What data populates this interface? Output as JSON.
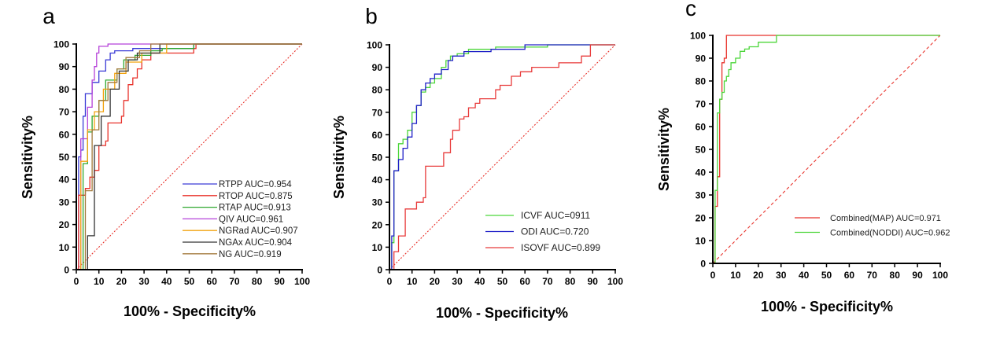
{
  "figure": {
    "description_labels": [
      "a",
      "b",
      "c"
    ]
  },
  "chart_data": [
    {
      "type": "line",
      "panel_label": "a",
      "xlabel": "100% - Specificity%",
      "ylabel": "Sensitivity%",
      "xlim": [
        0,
        100
      ],
      "ylim": [
        0,
        100
      ],
      "xticks": [
        "0",
        "10",
        "20",
        "30",
        "40",
        "50",
        "60",
        "70",
        "80",
        "90",
        "100"
      ],
      "yticks": [
        "0",
        "10",
        "20",
        "30",
        "40",
        "50",
        "60",
        "70",
        "80",
        "90",
        "100"
      ],
      "grid": false,
      "legend_position": "bottom-right",
      "reference_line": {
        "x": [
          0,
          100
        ],
        "y": [
          0,
          100
        ],
        "color": "#e8312a",
        "style": "dotted"
      },
      "series": [
        {
          "name": "RTPP",
          "legend_text": "RTPP   AUC=0.954",
          "color": "#3a3ad6",
          "x": [
            0,
            1,
            1,
            2,
            2,
            3,
            3,
            4,
            4,
            7,
            7,
            10,
            10,
            13,
            13,
            15,
            15,
            17,
            17,
            25,
            25,
            52,
            52,
            100
          ],
          "y": [
            0,
            0,
            50,
            50,
            53,
            53,
            68,
            68,
            78,
            78,
            83,
            83,
            88,
            88,
            93,
            93,
            96,
            96,
            97,
            97,
            98,
            98,
            100,
            100
          ]
        },
        {
          "name": "RTOP",
          "legend_text": "RTOP   AUC=0.875",
          "color": "#e8312a",
          "x": [
            0,
            1,
            1,
            4,
            4,
            6,
            6,
            8,
            8,
            10,
            10,
            13,
            13,
            14,
            14,
            20,
            20,
            21,
            21,
            23,
            23,
            25,
            25,
            27,
            27,
            29,
            29,
            33,
            33,
            52,
            52,
            53,
            53,
            100
          ],
          "y": [
            0,
            0,
            33,
            33,
            36,
            36,
            41,
            41,
            44,
            44,
            55,
            55,
            57,
            57,
            65,
            65,
            68,
            68,
            75,
            75,
            82,
            82,
            85,
            85,
            89,
            89,
            93,
            93,
            96,
            96,
            98,
            98,
            100,
            100
          ]
        },
        {
          "name": "RTAP",
          "legend_text": "RTAP    AUC=0.913",
          "color": "#2fa82f",
          "x": [
            0,
            3,
            3,
            5,
            5,
            7,
            7,
            10,
            10,
            13,
            13,
            18,
            18,
            21,
            21,
            26,
            26,
            33,
            33,
            38,
            38,
            52,
            52,
            100
          ],
          "y": [
            0,
            0,
            47,
            47,
            61,
            61,
            68,
            68,
            75,
            75,
            84,
            84,
            89,
            89,
            93,
            93,
            95,
            95,
            97,
            97,
            98,
            98,
            100,
            100
          ]
        },
        {
          "name": "QIV",
          "legend_text": "QIV      AUC=0.961",
          "color": "#b542d9",
          "x": [
            0,
            2,
            2,
            5,
            5,
            7,
            7,
            8,
            8,
            9,
            9,
            10,
            10,
            14,
            14,
            100
          ],
          "y": [
            0,
            0,
            58,
            58,
            72,
            72,
            84,
            84,
            90,
            90,
            96,
            96,
            99,
            99,
            100,
            100
          ]
        },
        {
          "name": "NGRad",
          "legend_text": "NGRad AUC=0.907",
          "color": "#f2a30f",
          "x": [
            0,
            2,
            2,
            5,
            5,
            8,
            8,
            12,
            12,
            17,
            17,
            22,
            22,
            29,
            29,
            40,
            40,
            100
          ],
          "y": [
            0,
            0,
            48,
            48,
            62,
            62,
            70,
            70,
            80,
            80,
            87,
            87,
            92,
            92,
            96,
            96,
            100,
            100
          ]
        },
        {
          "name": "NGAx",
          "legend_text": "NGAx    AUC=0.904",
          "color": "#333333",
          "x": [
            0,
            5,
            5,
            8,
            8,
            11,
            11,
            15,
            15,
            19,
            19,
            23,
            23,
            27,
            27,
            37,
            37,
            100
          ],
          "y": [
            0,
            0,
            15,
            15,
            55,
            55,
            68,
            68,
            80,
            80,
            88,
            88,
            93,
            93,
            96,
            96,
            100,
            100
          ]
        },
        {
          "name": "NG",
          "legend_text": "NG         AUC=0.919",
          "color": "#a37a3c",
          "x": [
            0,
            4,
            4,
            7,
            7,
            10,
            10,
            14,
            14,
            18,
            18,
            22,
            22,
            28,
            28,
            33,
            33,
            100
          ],
          "y": [
            0,
            0,
            35,
            35,
            62,
            62,
            75,
            75,
            83,
            83,
            89,
            89,
            94,
            94,
            97,
            97,
            100,
            100
          ]
        }
      ]
    },
    {
      "type": "line",
      "panel_label": "b",
      "xlabel": "100% - Specificity%",
      "ylabel": "Sensitivity%",
      "xlim": [
        0,
        100
      ],
      "ylim": [
        0,
        100
      ],
      "xticks": [
        "0",
        "10",
        "20",
        "30",
        "40",
        "50",
        "60",
        "70",
        "80",
        "90",
        "100"
      ],
      "yticks": [
        "0",
        "10",
        "20",
        "30",
        "40",
        "50",
        "60",
        "70",
        "80",
        "90",
        "100"
      ],
      "grid": false,
      "legend_position": "bottom-right",
      "reference_line": {
        "x": [
          0,
          100
        ],
        "y": [
          0,
          100
        ],
        "color": "#e8312a",
        "style": "dotted"
      },
      "series": [
        {
          "name": "ICVF",
          "legend_text": "ICVF   AUC=0911",
          "color": "#4cd63a",
          "x": [
            0,
            1,
            1,
            2,
            2,
            4,
            4,
            6,
            6,
            8,
            8,
            10,
            10,
            12,
            12,
            14,
            14,
            16,
            16,
            18,
            18,
            20,
            20,
            23,
            23,
            25,
            25,
            27,
            27,
            30,
            30,
            35,
            35,
            47,
            47,
            70,
            70,
            100
          ],
          "y": [
            0,
            0,
            12,
            12,
            44,
            44,
            56,
            56,
            58,
            58,
            62,
            62,
            70,
            70,
            73,
            73,
            79,
            79,
            81,
            81,
            83,
            83,
            85,
            85,
            90,
            90,
            93,
            93,
            95,
            95,
            96,
            96,
            98,
            98,
            99,
            99,
            100,
            100
          ]
        },
        {
          "name": "ODI",
          "legend_text": "ODI  AUC=0.720",
          "color": "#2020c8",
          "x": [
            0,
            1,
            1,
            2,
            2,
            4,
            4,
            6,
            6,
            8,
            8,
            10,
            10,
            12,
            12,
            14,
            14,
            16,
            16,
            18,
            18,
            20,
            20,
            23,
            23,
            26,
            26,
            28,
            28,
            33,
            33,
            45,
            45,
            60,
            60,
            100
          ],
          "y": [
            0,
            0,
            15,
            15,
            44,
            44,
            49,
            49,
            54,
            54,
            59,
            59,
            65,
            65,
            73,
            73,
            80,
            80,
            83,
            83,
            85,
            85,
            87,
            87,
            89,
            89,
            93,
            93,
            95,
            95,
            97,
            97,
            98,
            98,
            100,
            100
          ]
        },
        {
          "name": "ISOVF",
          "legend_text": "ISOVF  AUC=0.899",
          "color": "#e83a3a",
          "x": [
            0,
            2,
            2,
            4,
            4,
            7,
            7,
            12,
            12,
            15,
            15,
            16,
            16,
            24,
            24,
            27,
            27,
            28,
            28,
            31,
            31,
            33,
            33,
            35,
            35,
            38,
            38,
            40,
            40,
            47,
            47,
            49,
            49,
            54,
            54,
            58,
            58,
            63,
            63,
            75,
            75,
            85,
            85,
            89,
            89,
            100
          ],
          "y": [
            0,
            0,
            8,
            8,
            15,
            15,
            27,
            27,
            30,
            30,
            32,
            32,
            46,
            46,
            52,
            52,
            58,
            58,
            62,
            62,
            67,
            67,
            68,
            68,
            72,
            72,
            74,
            74,
            76,
            76,
            80,
            80,
            82,
            82,
            86,
            86,
            88,
            88,
            90,
            90,
            92,
            92,
            95,
            95,
            100,
            100
          ]
        }
      ]
    },
    {
      "type": "line",
      "panel_label": "c",
      "xlabel": "100% - Specificity%",
      "ylabel": "Sensitivity%",
      "xlim": [
        0,
        100
      ],
      "ylim": [
        0,
        100
      ],
      "xticks": [
        "0",
        "10",
        "20",
        "30",
        "40",
        "50",
        "60",
        "70",
        "80",
        "90",
        "100"
      ],
      "yticks": [
        "0",
        "10",
        "20",
        "30",
        "40",
        "50",
        "60",
        "70",
        "80",
        "90",
        "100"
      ],
      "grid": false,
      "legend_position": "bottom-right",
      "reference_line": {
        "x": [
          0,
          100
        ],
        "y": [
          0,
          100
        ],
        "color": "#e8312a",
        "style": "dashed"
      },
      "series": [
        {
          "name": "Combined(MAP)",
          "legend_text": "Combined(MAP)  AUC=0.971",
          "color": "#e8312a",
          "x": [
            0,
            1,
            1,
            2,
            2,
            3,
            3,
            4,
            4,
            5,
            5,
            6,
            6,
            100
          ],
          "y": [
            0,
            0,
            25,
            25,
            38,
            38,
            72,
            72,
            88,
            88,
            90,
            90,
            100,
            100
          ]
        },
        {
          "name": "Combined(NODDI)",
          "legend_text": "Combined(NODDI)  AUC=0.962",
          "color": "#4cd63a",
          "x": [
            0,
            1,
            1,
            2,
            2,
            3,
            3,
            4,
            4,
            5,
            5,
            6,
            6,
            7,
            7,
            8,
            8,
            10,
            10,
            12,
            12,
            14,
            14,
            16,
            16,
            20,
            20,
            28,
            28,
            100
          ],
          "y": [
            0,
            0,
            32,
            32,
            66,
            66,
            72,
            72,
            75,
            75,
            80,
            80,
            82,
            82,
            85,
            85,
            88,
            88,
            90,
            90,
            93,
            93,
            94,
            94,
            95,
            95,
            97,
            97,
            100,
            100
          ]
        }
      ]
    }
  ]
}
